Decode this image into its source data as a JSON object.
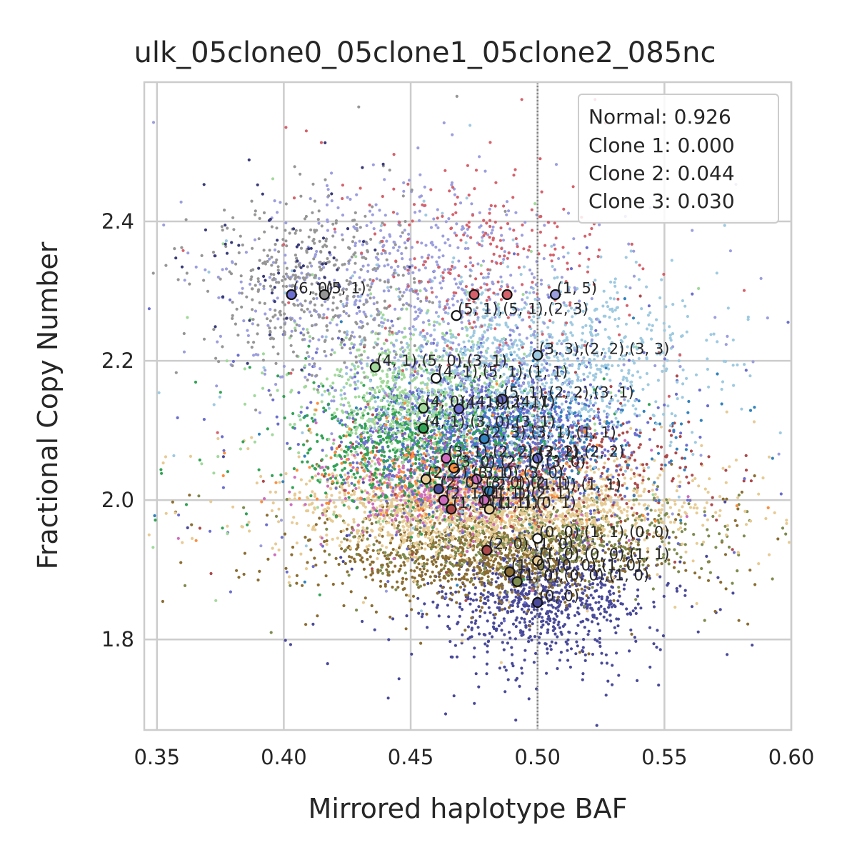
{
  "chart_data": {
    "type": "scatter",
    "title": "ulk_05clone0_05clone1_05clone2_085nc",
    "xlabel": "Mirrored haplotype BAF",
    "ylabel": "Fractional Copy Number",
    "xlim": [
      0.345,
      0.6
    ],
    "ylim": [
      1.67,
      2.6
    ],
    "xticks": [
      {
        "value": 0.35,
        "label": "0.35"
      },
      {
        "value": 0.4,
        "label": "0.40"
      },
      {
        "value": 0.45,
        "label": "0.45"
      },
      {
        "value": 0.5,
        "label": "0.50"
      },
      {
        "value": 0.55,
        "label": "0.55"
      },
      {
        "value": 0.6,
        "label": "0.60"
      }
    ],
    "yticks": [
      {
        "value": 1.8,
        "label": "1.8"
      },
      {
        "value": 2.0,
        "label": "2.0"
      },
      {
        "value": 2.2,
        "label": "2.2"
      },
      {
        "value": 2.4,
        "label": "2.4"
      }
    ],
    "grid": true,
    "reference_line": {
      "x": 0.5,
      "style": "dotted",
      "color": "#808080"
    },
    "legend": {
      "placement": "top-right",
      "entries": [
        "Normal: 0.926",
        "Clone 1: 0.000",
        "Clone 2: 0.044",
        "Clone 3: 0.030"
      ]
    },
    "point_clouds": [
      {
        "color": "#4a4a9a",
        "cx": 0.5,
        "cy": 1.86,
        "sx": 0.022,
        "sy": 0.045,
        "n": 900
      },
      {
        "color": "#8b6d32",
        "cx": 0.48,
        "cy": 1.92,
        "sx": 0.03,
        "sy": 0.03,
        "n": 1000
      },
      {
        "color": "#7d8c4e",
        "cx": 0.5,
        "cy": 1.95,
        "sx": 0.035,
        "sy": 0.03,
        "n": 600
      },
      {
        "color": "#e7cb94",
        "cx": 0.48,
        "cy": 1.99,
        "sx": 0.035,
        "sy": 0.03,
        "n": 1700
      },
      {
        "color": "#ce6dbd",
        "cx": 0.46,
        "cy": 2.02,
        "sx": 0.02,
        "sy": 0.03,
        "n": 400
      },
      {
        "color": "#ad494a",
        "cx": 0.5,
        "cy": 2.05,
        "sx": 0.03,
        "sy": 0.04,
        "n": 500
      },
      {
        "color": "#6b6ecf",
        "cx": 0.48,
        "cy": 2.1,
        "sx": 0.028,
        "sy": 0.05,
        "n": 1300
      },
      {
        "color": "#3182bd",
        "cx": 0.49,
        "cy": 2.09,
        "sx": 0.025,
        "sy": 0.04,
        "n": 500
      },
      {
        "color": "#31a354",
        "cx": 0.45,
        "cy": 2.07,
        "sx": 0.022,
        "sy": 0.04,
        "n": 600
      },
      {
        "color": "#a1d99b",
        "cx": 0.45,
        "cy": 2.15,
        "sx": 0.022,
        "sy": 0.05,
        "n": 700
      },
      {
        "color": "#9ecae1",
        "cx": 0.5,
        "cy": 2.2,
        "sx": 0.03,
        "sy": 0.06,
        "n": 1000
      },
      {
        "color": "#9c9ede",
        "cx": 0.45,
        "cy": 2.3,
        "sx": 0.035,
        "sy": 0.08,
        "n": 700
      },
      {
        "color": "#969696",
        "cx": 0.41,
        "cy": 2.31,
        "sx": 0.02,
        "sy": 0.06,
        "n": 450
      },
      {
        "color": "#d6616b",
        "cx": 0.48,
        "cy": 2.35,
        "sx": 0.025,
        "sy": 0.07,
        "n": 250
      },
      {
        "color": "#393b79",
        "cx": 0.4,
        "cy": 2.35,
        "sx": 0.02,
        "sy": 0.06,
        "n": 60
      },
      {
        "color": "#fd8d3c",
        "cx": 0.46,
        "cy": 2.04,
        "sx": 0.03,
        "sy": 0.03,
        "n": 180
      }
    ],
    "cluster_centers": [
      {
        "x": 0.403,
        "y": 2.295,
        "fill": "#6b6ecf",
        "label": "(6, 0)"
      },
      {
        "x": 0.416,
        "y": 2.295,
        "fill": "#969696",
        "label": "(5, 1)"
      },
      {
        "x": 0.475,
        "y": 2.295,
        "fill": "#d6616b",
        "label": ""
      },
      {
        "x": 0.488,
        "y": 2.295,
        "fill": "#d6616b",
        "label": ""
      },
      {
        "x": 0.507,
        "y": 2.295,
        "fill": "#9c9ede",
        "label": "(1, 5)"
      },
      {
        "x": 0.468,
        "y": 2.265,
        "fill": "#ffffff",
        "label": "(5, 1),(5, 1),(2, 3)"
      },
      {
        "x": 0.5,
        "y": 2.208,
        "fill": "#9ecae1",
        "label": "(3, 3),(2, 2),(3, 3)"
      },
      {
        "x": 0.436,
        "y": 2.191,
        "fill": "#a1d99b",
        "label": "(4, 1),(5, 0),(3, 1)"
      },
      {
        "x": 0.46,
        "y": 2.175,
        "fill": "#ffffff",
        "label": "(4, 1),(5, 1),(1, 1)"
      },
      {
        "x": 0.486,
        "y": 2.145,
        "fill": "#6b6ecf",
        "label": "(5, 1),(2, 2),(3, 1)"
      },
      {
        "x": 0.455,
        "y": 2.132,
        "fill": "#a1d99b",
        "label": "(4, 0),(4, 0),(4, 1)"
      },
      {
        "x": 0.469,
        "y": 2.131,
        "fill": "#6b6ecf",
        "label": "(4, 1),(2, 1)"
      },
      {
        "x": 0.455,
        "y": 2.103,
        "fill": "#31a354",
        "label": "(4, 1),(3, 0),(3, 1)"
      },
      {
        "x": 0.479,
        "y": 2.088,
        "fill": "#3182bd",
        "label": "(2, 3),(3, 1),(1, 1)"
      },
      {
        "x": 0.464,
        "y": 2.06,
        "fill": "#ce6dbd",
        "label": "(3, 1),(2, 2),(3, 1)"
      },
      {
        "x": 0.5,
        "y": 2.06,
        "fill": "#6b6ecf",
        "label": "(2, 2),(2, 2)"
      },
      {
        "x": 0.467,
        "y": 2.046,
        "fill": "#fd8d3c",
        "label": "(3, 0),(2, 1),(3, 0)"
      },
      {
        "x": 0.456,
        "y": 2.03,
        "fill": "#e7cb94",
        "label": "(2, 2),(3, 1)"
      },
      {
        "x": 0.476,
        "y": 2.03,
        "fill": "#ce6dbd",
        "label": "(3, 0),(3, 0)"
      },
      {
        "x": 0.461,
        "y": 2.016,
        "fill": "#4a4a9a",
        "label": "(2, 0),(3, 0),(2, 1)"
      },
      {
        "x": 0.481,
        "y": 2.013,
        "fill": "#3182bd",
        "label": "(2, 1),(1, 1),(1, 1)"
      },
      {
        "x": 0.463,
        "y": 2.0,
        "fill": "#ce6dbd",
        "label": "(2, 1),(1, 1)"
      },
      {
        "x": 0.479,
        "y": 2.0,
        "fill": "#ce6dbd",
        "label": "(1, 1),(2, 1)"
      },
      {
        "x": 0.466,
        "y": 1.987,
        "fill": "#ad494a",
        "label": "(1, 1),(1, 1)"
      },
      {
        "x": 0.481,
        "y": 1.987,
        "fill": "#e7cb94",
        "label": "(1, 1),(0, 1)"
      },
      {
        "x": 0.48,
        "y": 1.928,
        "fill": "#ad494a",
        "label": "(2, 0),(1, 0)"
      },
      {
        "x": 0.5,
        "y": 1.913,
        "fill": "#e7cb94",
        "label": "(1, 0),(0, 0),(1, 1)"
      },
      {
        "x": 0.489,
        "y": 1.897,
        "fill": "#8b6d32",
        "label": "(1, 0),(0, 0),(1, 0)"
      },
      {
        "x": 0.492,
        "y": 1.883,
        "fill": "#7d8c4e",
        "label": "(1, 0),(0, 0),(1, 0)"
      },
      {
        "x": 0.5,
        "y": 1.853,
        "fill": "#4a4a9a",
        "label": "(0, 0)"
      },
      {
        "x": 0.5,
        "y": 1.945,
        "fill": "#ffffff",
        "label": "(0, 0),(1, 1),(0, 0)"
      }
    ]
  }
}
